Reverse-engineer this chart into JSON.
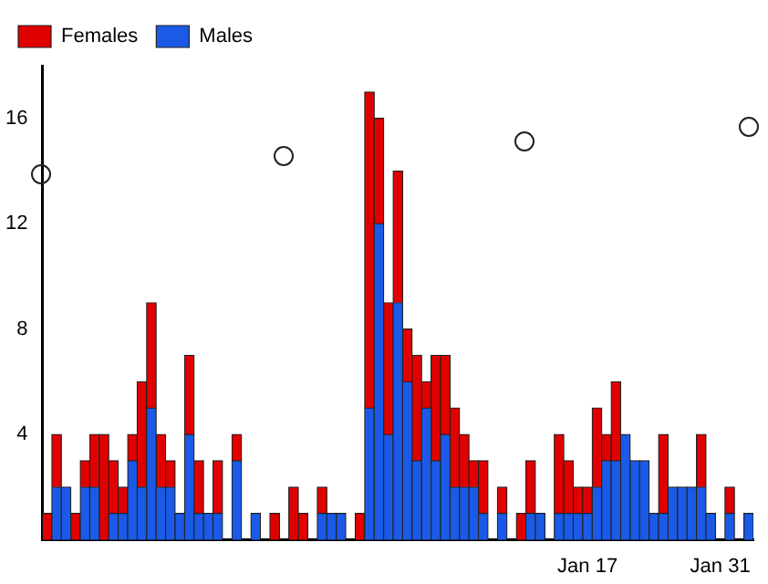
{
  "chart_data": {
    "type": "bar",
    "stacked": true,
    "categories": [
      null,
      null,
      null,
      null,
      null,
      null,
      null,
      null,
      null,
      null,
      null,
      null,
      null,
      null,
      null,
      null,
      null,
      null,
      null,
      null,
      null,
      null,
      null,
      null,
      null,
      null,
      null,
      null,
      null,
      null,
      null,
      null,
      null,
      null,
      null,
      null,
      null,
      null,
      null,
      null,
      null,
      null,
      null,
      null,
      null,
      null,
      null,
      null,
      null,
      null,
      null,
      null,
      null,
      null,
      null,
      null,
      null,
      "Jan 17",
      null,
      null,
      null,
      null,
      null,
      null,
      null,
      null,
      null,
      null,
      null,
      null,
      null,
      "Jan 31",
      null,
      null,
      null
    ],
    "series": [
      {
        "name": "Males",
        "color": "#1a5ae6",
        "values": [
          0,
          2,
          2,
          0,
          2,
          2,
          0,
          1,
          1,
          3,
          2,
          5,
          2,
          2,
          1,
          4,
          1,
          1,
          1,
          0,
          3,
          0,
          1,
          0,
          0,
          0,
          0,
          0,
          0,
          1,
          1,
          1,
          0,
          0,
          5,
          12,
          4,
          9,
          6,
          3,
          5,
          3,
          4,
          2,
          2,
          2,
          1,
          0,
          1,
          0,
          0,
          1,
          1,
          0,
          1,
          1,
          1,
          1,
          2,
          3,
          3,
          4,
          3,
          3,
          1,
          1,
          2,
          2,
          2,
          2,
          1,
          0,
          1,
          0,
          1
        ]
      },
      {
        "name": "Females",
        "color": "#e00000",
        "values": [
          1,
          2,
          0,
          1,
          1,
          2,
          4,
          2,
          1,
          1,
          4,
          4,
          2,
          1,
          0,
          3,
          2,
          0,
          2,
          0,
          1,
          0,
          0,
          0,
          1,
          0,
          2,
          1,
          0,
          1,
          0,
          0,
          0,
          1,
          12,
          4,
          5,
          5,
          2,
          4,
          1,
          4,
          3,
          3,
          2,
          1,
          2,
          0,
          1,
          0,
          1,
          2,
          0,
          0,
          3,
          2,
          1,
          1,
          3,
          1,
          3,
          0,
          0,
          0,
          0,
          3,
          0,
          0,
          0,
          2,
          0,
          0,
          1,
          0,
          0
        ]
      }
    ],
    "ylim": [
      0,
      18
    ],
    "yticks": [
      4,
      8,
      12,
      16
    ],
    "grid": false,
    "legend": "top left"
  }
}
